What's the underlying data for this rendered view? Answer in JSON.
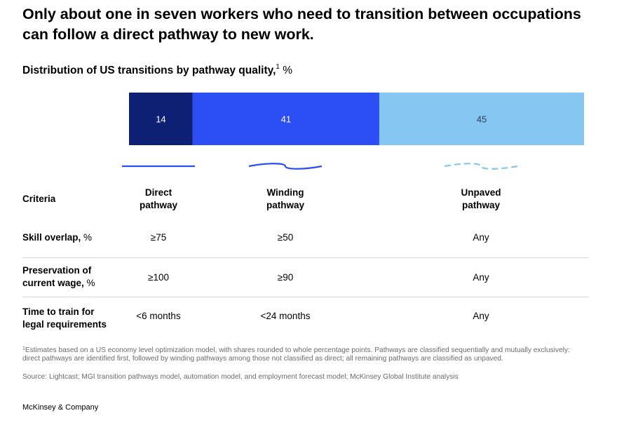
{
  "headline": "Only about one in seven workers who need to transition between occupations can follow a direct pathway to new work.",
  "subtitle": "Distribution of US transitions by pathway quality,",
  "subtitle_sup": "1",
  "subtitle_unit": " %",
  "chart_data": {
    "type": "bar",
    "orientation": "horizontal-stacked",
    "categories": [
      "Direct pathway",
      "Winding pathway",
      "Unpaved pathway"
    ],
    "values": [
      14,
      41,
      45
    ],
    "colors": [
      "#0d2073",
      "#2b4ef5",
      "#85c7f2"
    ],
    "label_colors": [
      "#ffffff",
      "#ffffff",
      "#2d3b55"
    ],
    "xlim": [
      0,
      100
    ]
  },
  "table": {
    "criteria_header": "Criteria",
    "columns": [
      {
        "line1": "Direct",
        "line2": "pathway",
        "line_style": "straight",
        "color": "#2b4ef5"
      },
      {
        "line1": "Winding",
        "line2": "pathway",
        "line_style": "wavy",
        "color": "#2b4ef5"
      },
      {
        "line1": "Unpaved",
        "line2": "pathway",
        "line_style": "dashed-wavy",
        "color": "#85c7f2"
      }
    ],
    "rows": [
      {
        "label1": "Skill overlap,",
        "unit": " %",
        "label2": "",
        "values": [
          "≥75",
          "≥50",
          "Any"
        ]
      },
      {
        "label1": "Preservation of",
        "label2": "current wage,",
        "unit": " %",
        "values": [
          "≥100",
          "≥90",
          "Any"
        ]
      },
      {
        "label1": "Time to train for",
        "label2": "legal requirements",
        "unit": "",
        "values": [
          "<6 months",
          "<24 months",
          "Any"
        ]
      }
    ]
  },
  "footnote_sup": "1",
  "footnote": "Estimates based on a US economy level optimization model, with shares rounded to whole percentage points. Pathways are classified sequentially and mutually exclusively: direct pathways are identified first, followed by winding pathways among those not classified as direct; all remaining pathways are classified as unpaved.",
  "source": "Source: Lightcast; MGI transition pathways model, automation model, and employment forecast model; McKinsey Global Institute analysis",
  "brand": "McKinsey & Company"
}
